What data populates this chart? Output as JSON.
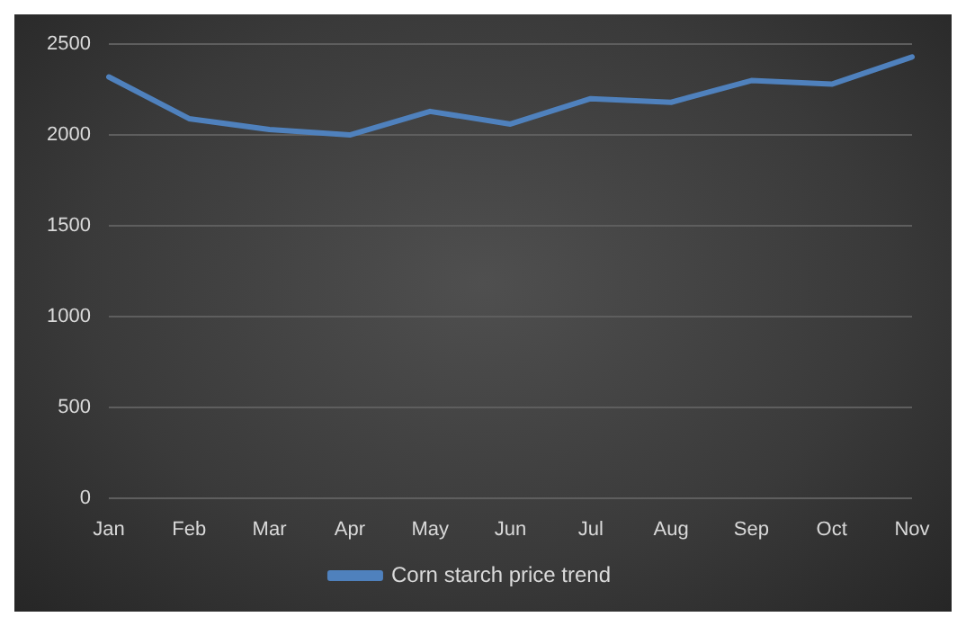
{
  "chart_data": {
    "type": "line",
    "categories": [
      "Jan",
      "Feb",
      "Mar",
      "Apr",
      "May",
      "Jun",
      "Jul",
      "Aug",
      "Sep",
      "Oct",
      "Nov"
    ],
    "series": [
      {
        "name": "Corn starch price trend",
        "color": "#4f81bd",
        "values": [
          2320,
          2090,
          2030,
          2000,
          2130,
          2060,
          2200,
          2180,
          2300,
          2280,
          2430
        ]
      }
    ],
    "ylim": [
      0,
      2500
    ],
    "yticks": [
      0,
      500,
      1000,
      1500,
      2000,
      2500
    ],
    "grid": "y",
    "legend": "bottom",
    "marker": "none",
    "line_style": "solid"
  }
}
